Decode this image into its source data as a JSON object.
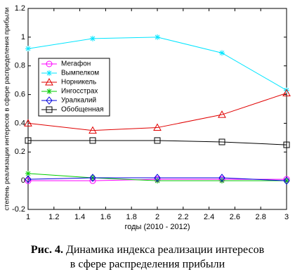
{
  "chart_data": {
    "type": "line",
    "xlabel": "годы (2010 - 2012)",
    "ylabel": "степень реализации интересов в сфере распределения прибыли",
    "x": [
      1,
      1.5,
      2,
      2.5,
      3
    ],
    "xlim": [
      1,
      3
    ],
    "xticks": [
      1,
      1.2,
      1.4,
      1.6,
      1.8,
      2,
      2.2,
      2.4,
      2.6,
      2.8,
      3
    ],
    "ylim": [
      -0.2,
      1.2
    ],
    "yticks": [
      -0.2,
      0,
      0.2,
      0.4,
      0.6,
      0.8,
      1,
      1.2
    ],
    "legend": "upper left",
    "series": [
      {
        "name": "Мегафон",
        "color": "#ff00ff",
        "marker": "circle",
        "values": [
          0.0,
          0.0,
          0.01,
          0.01,
          0.01
        ]
      },
      {
        "name": "Вымпелком",
        "color": "#00e5ff",
        "marker": "star",
        "values": [
          0.92,
          0.99,
          1.0,
          0.89,
          0.63
        ]
      },
      {
        "name": "Норникель",
        "color": "#e00000",
        "marker": "triangle",
        "values": [
          0.4,
          0.35,
          0.37,
          0.46,
          0.61
        ]
      },
      {
        "name": "Ингосстрах",
        "color": "#00cc00",
        "marker": "star",
        "values": [
          0.05,
          0.02,
          0.0,
          0.0,
          0.0
        ]
      },
      {
        "name": "Уралкалий",
        "color": "#0000dd",
        "marker": "diamond",
        "values": [
          0.01,
          0.02,
          0.02,
          0.02,
          0.0
        ]
      },
      {
        "name": "Обобщенная",
        "color": "#000000",
        "marker": "square",
        "values": [
          0.28,
          0.28,
          0.28,
          0.27,
          0.25
        ]
      }
    ]
  },
  "caption": {
    "label": "Рис. 4.",
    "line1": "Динамика индекса реализации интересов",
    "line2": "в сфере распределения прибыли"
  }
}
